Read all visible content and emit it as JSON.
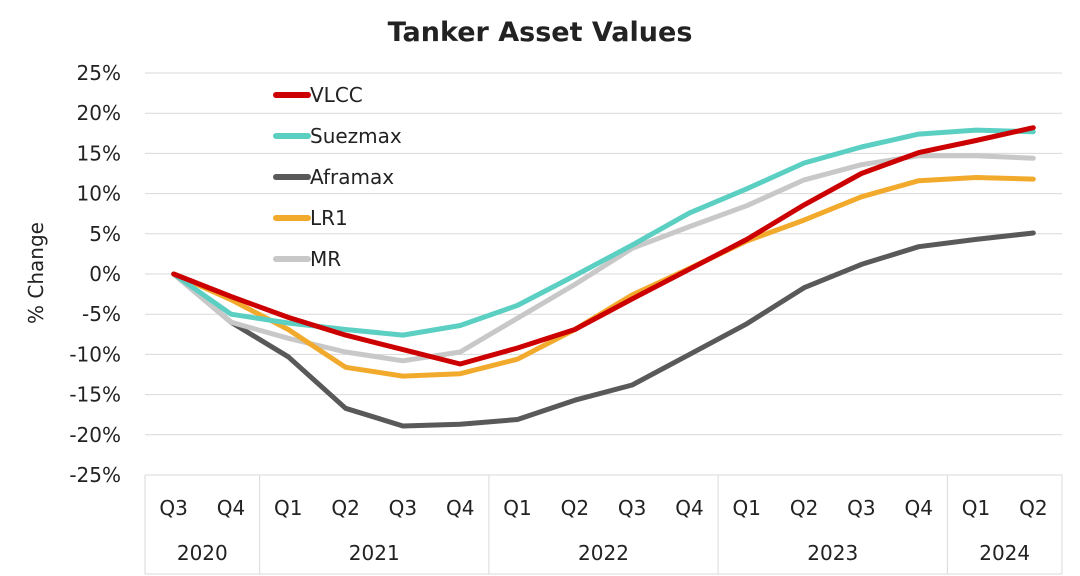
{
  "chart_data": {
    "type": "line",
    "title": "Tanker Asset Values",
    "ylabel": "% Change",
    "xlabel": "",
    "ylim": [
      -25,
      25
    ],
    "ytick_step": 5,
    "y_tick_labels": [
      "25%",
      "20%",
      "15%",
      "10%",
      "5%",
      "0%",
      "-5%",
      "-10%",
      "-15%",
      "-20%",
      "-25%"
    ],
    "categories": [
      "Q3",
      "Q4",
      "Q1",
      "Q2",
      "Q3",
      "Q4",
      "Q1",
      "Q2",
      "Q3",
      "Q4",
      "Q1",
      "Q2",
      "Q3",
      "Q4",
      "Q1",
      "Q2"
    ],
    "years": [
      {
        "label": "2020",
        "span": 2
      },
      {
        "label": "2021",
        "span": 4
      },
      {
        "label": "2022",
        "span": 4
      },
      {
        "label": "2023",
        "span": 4
      },
      {
        "label": "2024",
        "span": 2
      }
    ],
    "grid": "horizontal",
    "legend_position": "top-left",
    "series": [
      {
        "name": "VLCC",
        "color": "#cc0000",
        "values": [
          0,
          -2.8,
          -5.4,
          -7.6,
          -9.4,
          -11.2,
          -9.2,
          -6.9,
          -3.1,
          0.6,
          4.3,
          8.6,
          12.5,
          15.1,
          16.6,
          18.2
        ]
      },
      {
        "name": "Suezmax",
        "color": "#5ccfc3",
        "values": [
          0,
          -5.0,
          -6.1,
          -6.9,
          -7.6,
          -6.4,
          -3.9,
          -0.2,
          3.6,
          7.6,
          10.6,
          13.8,
          15.8,
          17.4,
          17.9,
          17.7
        ]
      },
      {
        "name": "Aframax",
        "color": "#595959",
        "values": [
          0,
          -6.0,
          -10.3,
          -16.7,
          -18.9,
          -18.7,
          -18.1,
          -15.7,
          -13.8,
          -10.0,
          -6.2,
          -1.7,
          1.2,
          3.4,
          4.3,
          5.1
        ]
      },
      {
        "name": "LR1",
        "color": "#f2aa2c",
        "values": [
          0,
          -3.2,
          -6.9,
          -11.6,
          -12.7,
          -12.4,
          -10.6,
          -6.9,
          -2.6,
          0.7,
          4.1,
          6.7,
          9.6,
          11.6,
          12.0,
          11.8
        ]
      },
      {
        "name": "MR",
        "color": "#c8c8c8",
        "values": [
          0,
          -6.0,
          -8.0,
          -9.7,
          -10.8,
          -9.7,
          -5.5,
          -1.3,
          3.2,
          5.9,
          8.5,
          11.7,
          13.6,
          14.7,
          14.7,
          14.4
        ]
      }
    ]
  }
}
